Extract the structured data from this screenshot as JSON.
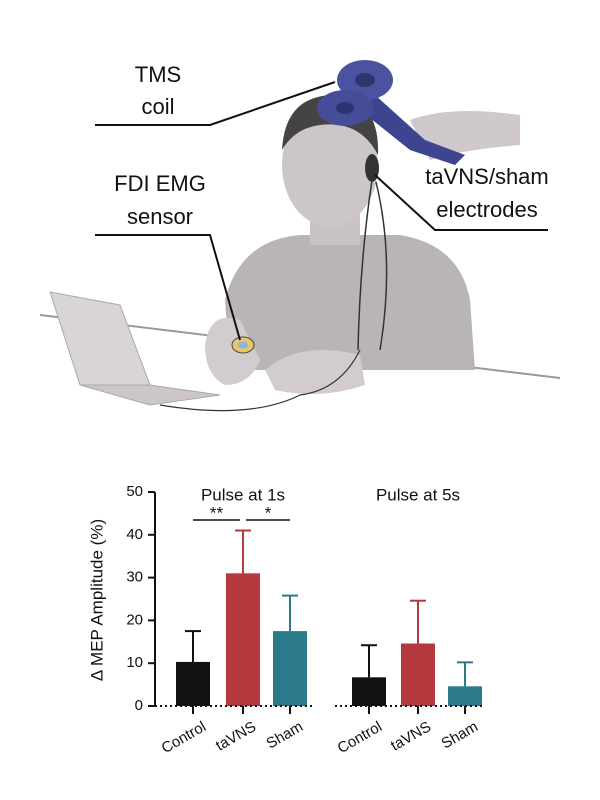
{
  "illustration": {
    "labels": [
      "TMS",
      "coil",
      "FDI EMG",
      "sensor",
      "taVNS/sham",
      "electrodes"
    ]
  },
  "chart_data": [
    {
      "type": "bar",
      "title": "Pulse at 1s",
      "ylabel": "Δ MEP Amplitude (%)",
      "categories": [
        "Control",
        "taVNS",
        "Sham"
      ],
      "values": [
        10.3,
        31,
        17.5
      ],
      "errors": [
        7.2,
        10,
        8.3
      ],
      "colors": [
        "#111111",
        "#b5393c",
        "#2a7a8c"
      ],
      "ylim": [
        0,
        50
      ],
      "yticks": [
        0,
        10,
        20,
        30,
        40,
        50
      ],
      "annotations": [
        "**",
        "*"
      ]
    },
    {
      "type": "bar",
      "title": "Pulse at 5s",
      "categories": [
        "Control",
        "taVNS",
        "Sham"
      ],
      "values": [
        6.7,
        14.6,
        4.6
      ],
      "errors": [
        7.5,
        10,
        5.6
      ],
      "colors": [
        "#111111",
        "#b5393c",
        "#2a7a8c"
      ],
      "ylim": [
        0,
        50
      ]
    }
  ]
}
